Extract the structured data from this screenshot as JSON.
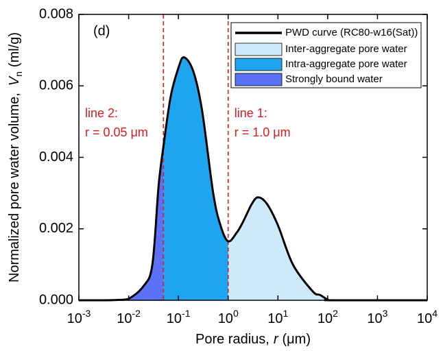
{
  "chart_data": {
    "type": "area",
    "panel_label": "(d)",
    "xlabel": {
      "text": "Pore radius,",
      "symbol": "r",
      "unit": "(μm)"
    },
    "ylabel": {
      "text": "Normalized pore water volume,",
      "symbol": "V",
      "subscript": "n",
      "unit": "(ml/g)"
    },
    "xscale": "log",
    "xlim": [
      0.001,
      10000
    ],
    "ylim": [
      0,
      0.008
    ],
    "xticks": [
      {
        "value": 0.001,
        "label": "10",
        "exponent": "-3"
      },
      {
        "value": 0.01,
        "label": "10",
        "exponent": "-2"
      },
      {
        "value": 0.1,
        "label": "10",
        "exponent": "-1"
      },
      {
        "value": 1,
        "label": "10",
        "exponent": "0"
      },
      {
        "value": 10,
        "label": "10",
        "exponent": "1"
      },
      {
        "value": 100,
        "label": "10",
        "exponent": "2"
      },
      {
        "value": 1000,
        "label": "10",
        "exponent": "3"
      },
      {
        "value": 10000,
        "label": "10",
        "exponent": "4"
      }
    ],
    "yticks": [
      {
        "value": 0,
        "label": "0.000"
      },
      {
        "value": 0.002,
        "label": "0.002"
      },
      {
        "value": 0.004,
        "label": "0.004"
      },
      {
        "value": 0.006,
        "label": "0.006"
      },
      {
        "value": 0.008,
        "label": "0.008"
      }
    ],
    "curve": {
      "name": "PWD curve (RC80-w16(Sat))",
      "color": "#000000",
      "x": [
        0.001,
        0.003,
        0.006,
        0.01,
        0.02,
        0.03,
        0.04,
        0.05,
        0.07,
        0.1,
        0.13,
        0.2,
        0.3,
        0.5,
        0.7,
        1,
        1.5,
        2,
        3,
        4,
        6,
        10,
        20,
        50,
        70,
        100,
        130,
        10000
      ],
      "values": [
        0,
        0,
        1e-05,
        4e-05,
        0.0004,
        0.001,
        0.0032,
        0.0043,
        0.0057,
        0.0065,
        0.0068,
        0.0064,
        0.0053,
        0.003,
        0.0021,
        0.00165,
        0.0019,
        0.0022,
        0.0027,
        0.00288,
        0.0027,
        0.0021,
        0.001,
        0.00025,
        0.00015,
        2e-05,
        0,
        0
      ]
    },
    "areas": [
      {
        "name": "Inter-aggregate pore water",
        "color": "#cde9fa"
      },
      {
        "name": "Intra-aggregate pore water",
        "color": "#1ea5f0"
      },
      {
        "name": "Strongly bound water",
        "color": "#5b72f7"
      }
    ],
    "vlines": [
      {
        "x": 0.05,
        "label": "line 2:",
        "sublabel": "r = 0.05 μm",
        "color": "#e0191a"
      },
      {
        "x": 1,
        "label": "line 1:",
        "sublabel": "r = 1.0 μm",
        "color": "#e0191a"
      }
    ]
  }
}
